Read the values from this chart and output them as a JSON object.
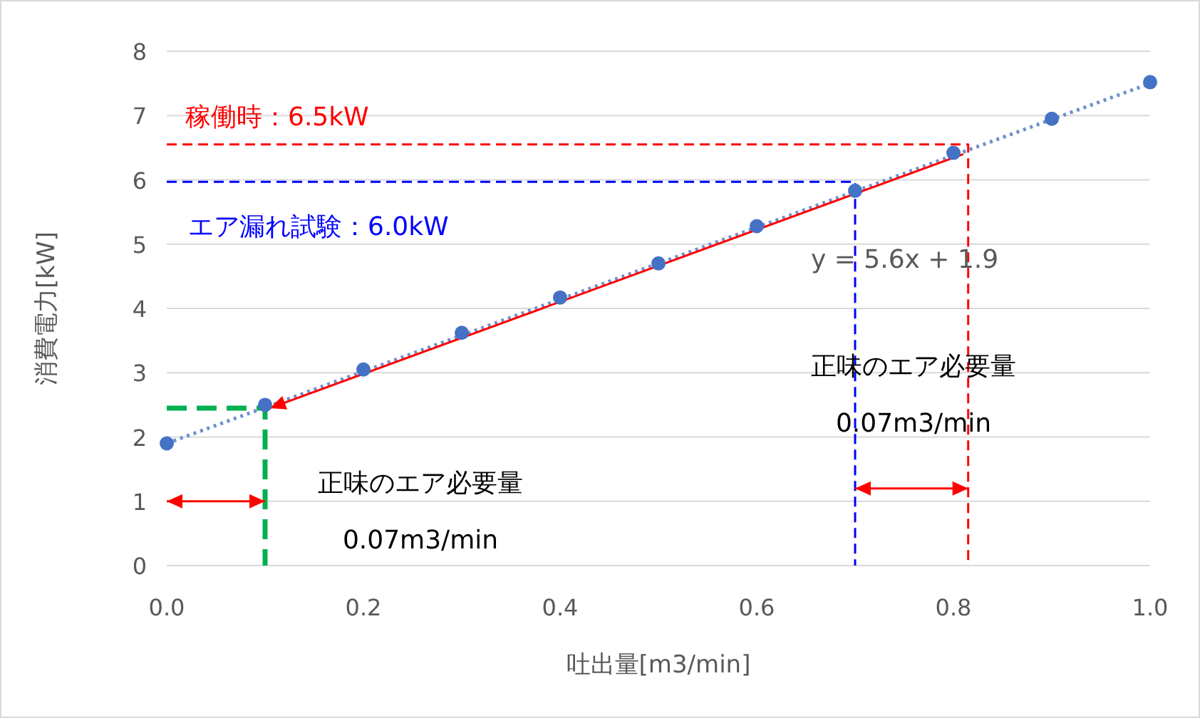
{
  "chart_data": {
    "type": "scatter",
    "xlabel": "吐出量[m3/min]",
    "ylabel": "消費電力[kW]",
    "xlim": [
      0,
      1
    ],
    "ylim": [
      0,
      8
    ],
    "xticks": [
      {
        "value": 0,
        "label": "0.0"
      },
      {
        "value": 0.2,
        "label": "0.2"
      },
      {
        "value": 0.4,
        "label": "0.4"
      },
      {
        "value": 0.6,
        "label": "0.6"
      },
      {
        "value": 0.8,
        "label": "0.8"
      },
      {
        "value": 1,
        "label": "1.0"
      }
    ],
    "yticks": [
      0,
      1,
      2,
      3,
      4,
      5,
      6,
      7,
      8
    ],
    "grid": "y",
    "series": [
      {
        "type": "line",
        "color": "#ff0000",
        "line_style": "dashed",
        "x": [
          0,
          0.815,
          0.815
        ],
        "values": [
          6.55,
          6.55,
          0
        ]
      },
      {
        "type": "line",
        "color": "#0000ff",
        "line_style": "dashed",
        "x": [
          0,
          0.7,
          0.7
        ],
        "values": [
          5.97,
          5.97,
          0
        ]
      },
      {
        "type": "line",
        "color": "#00b050",
        "line_style": "dashed",
        "x": [
          0,
          0.1,
          0.1
        ],
        "values": [
          2.45,
          2.45,
          0
        ]
      },
      {
        "type": "line",
        "color": "#6f8fd0",
        "line_style": "dotted",
        "x": [
          0,
          1
        ],
        "values": [
          1.9,
          7.5
        ]
      },
      {
        "type": "line",
        "color": "#ff0000",
        "line_style": "solid",
        "x": [
          0.81,
          0.105
        ],
        "values": [
          6.4,
          2.45
        ]
      },
      {
        "type": "line",
        "color": "#ff0000",
        "line_style": "solid",
        "x": [
          0,
          0.1
        ],
        "values": [
          1,
          1
        ]
      },
      {
        "type": "line",
        "color": "#ff0000",
        "line_style": "solid",
        "x": [
          0.7,
          0.815
        ],
        "values": [
          1.2,
          1.2
        ]
      },
      {
        "color": "#4472c4",
        "marker": "circle",
        "x": [
          0,
          0.1,
          0.2,
          0.3,
          0.4,
          0.5,
          0.6,
          0.7,
          0.8,
          0.9,
          1.0
        ],
        "values": [
          1.9,
          2.5,
          3.05,
          3.62,
          4.17,
          4.7,
          5.28,
          5.83,
          6.42,
          6.95,
          7.52
        ]
      }
    ],
    "annotations": [
      "稼働時：6.5kW",
      "エア漏れ試験：6.0kW",
      "y = 5.6x + 1.9",
      "正味のエア必要量\n0.07m3/min",
      "正味のエア必要量\n0.07m3/min"
    ]
  }
}
